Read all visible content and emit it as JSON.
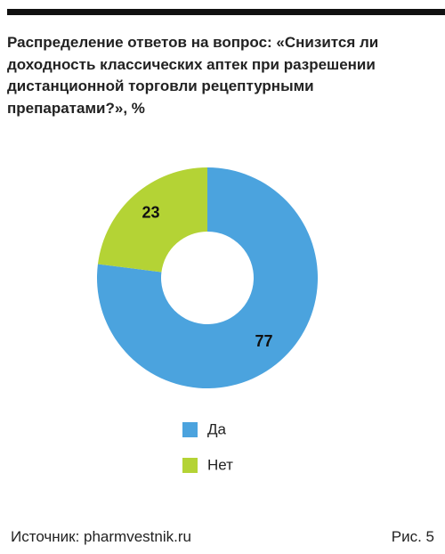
{
  "chart_data": {
    "type": "donut",
    "title": "Распределение ответов на вопрос: «Снизится ли доходность классических аптек при разрешении дистанционной торговли рецептурными препаратами?», %",
    "categories": [
      "Да",
      "Нет"
    ],
    "values": [
      77,
      23
    ],
    "colors": [
      "#4ba3de",
      "#b4d335"
    ],
    "source": "Источник: pharmvestnik.ru",
    "figure_label": "Рис. 5"
  }
}
